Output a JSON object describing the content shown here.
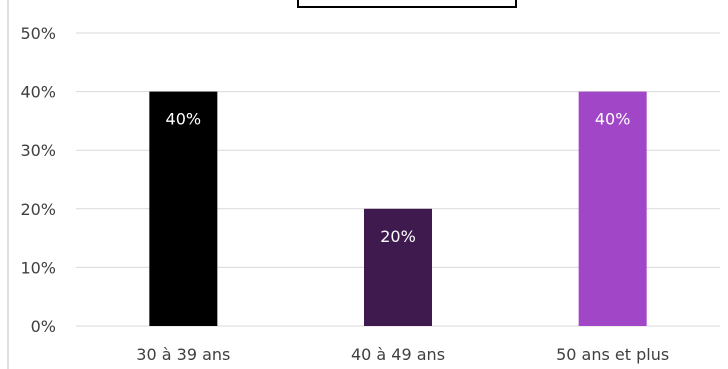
{
  "chart_data": {
    "type": "bar",
    "categories": [
      "30 à 39 ans",
      "40 à 49 ans",
      "50 ans et plus"
    ],
    "values": [
      0.4,
      0.2,
      0.4
    ],
    "data_labels": [
      "40%",
      "20%",
      "40%"
    ],
    "bar_colors": [
      "#000000",
      "#3f1a4f",
      "#a246c8"
    ],
    "ylim": [
      0,
      0.5
    ],
    "y_ticks": [
      0,
      0.1,
      0.2,
      0.3,
      0.4,
      0.5
    ],
    "y_tick_labels": [
      "0%",
      "10%",
      "20%",
      "30%",
      "40%",
      "50%"
    ],
    "grid": true,
    "legend": "none",
    "title": ""
  }
}
